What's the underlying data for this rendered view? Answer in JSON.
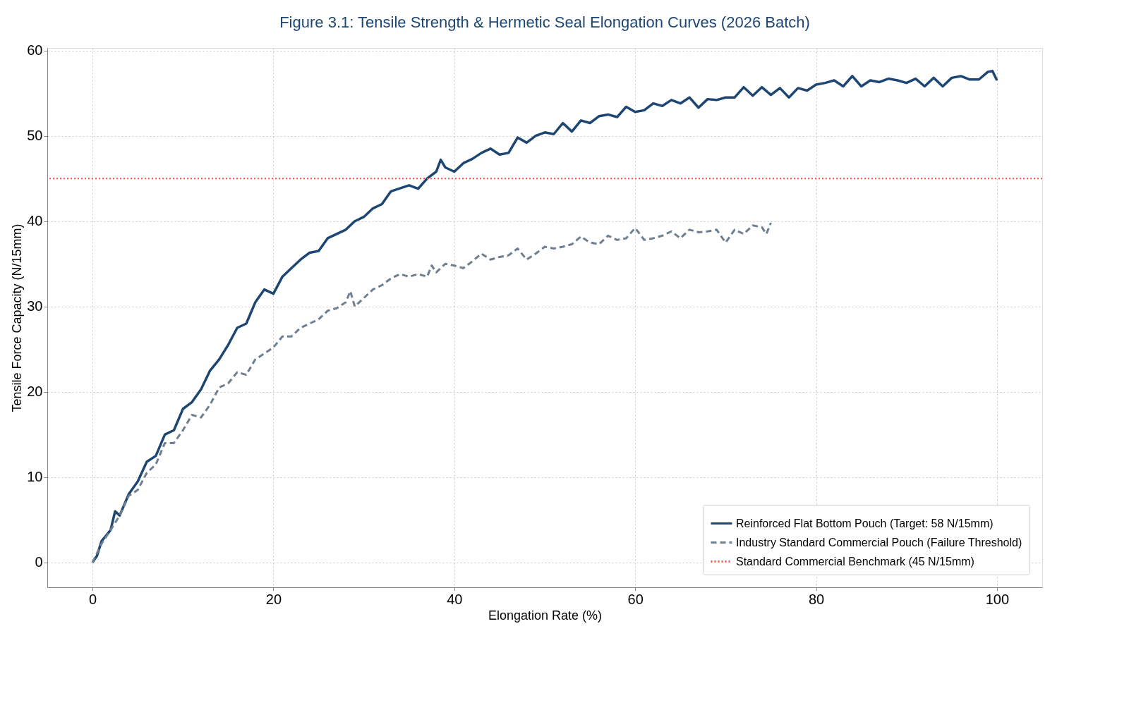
{
  "chart_data": {
    "type": "line",
    "title": "Figure 3.1: Tensile Strength & Hermetic Seal Elongation Curves (2026 Batch)",
    "xlabel": "Elongation Rate (%)",
    "ylabel": "Tensile Force Capacity (N/15mm)",
    "xlim": [
      -5,
      105
    ],
    "ylim": [
      -2.9,
      60.3
    ],
    "xticks": [
      0,
      20,
      40,
      60,
      80,
      100
    ],
    "yticks": [
      0,
      10,
      20,
      30,
      40,
      50,
      60
    ],
    "grid": true,
    "legend": "bottom right",
    "series": [
      {
        "name": "Reinforced Flat Bottom Pouch (Target: 58 N/15mm)",
        "color": "#1d4672",
        "line_style": "solid",
        "x": [
          0,
          0.5,
          1,
          2,
          2.5,
          3,
          4,
          5,
          6,
          7,
          8,
          9,
          10,
          11,
          12,
          13,
          14,
          15,
          16,
          17,
          18,
          19,
          20,
          21,
          22,
          23,
          24,
          25,
          26,
          28,
          29,
          30,
          31,
          32,
          33,
          35,
          36,
          37,
          38,
          38.5,
          39,
          40,
          41,
          42,
          43,
          44,
          45,
          46,
          47,
          48,
          49,
          50,
          51,
          52,
          53,
          54,
          55,
          56,
          57,
          58,
          59,
          60,
          61,
          62,
          63,
          64,
          65,
          66,
          67,
          68,
          69,
          70,
          71,
          72,
          73,
          74,
          75,
          76,
          77,
          78,
          79,
          80,
          81,
          82,
          83,
          84,
          85,
          86,
          87,
          88,
          89,
          90,
          91,
          92,
          93,
          94,
          95,
          96,
          97,
          98,
          99,
          99.5,
          100
        ],
        "values": [
          0,
          0.8,
          2.5,
          3.8,
          6,
          5.5,
          8,
          9.5,
          11.8,
          12.5,
          15,
          15.5,
          18,
          18.8,
          20.3,
          22.5,
          23.8,
          25.5,
          27.5,
          28,
          30.5,
          32,
          31.5,
          33.5,
          34.5,
          35.5,
          36.3,
          36.5,
          38,
          39,
          40,
          40.5,
          41.5,
          42,
          43.5,
          44.2,
          43.8,
          45,
          45.8,
          47.2,
          46.3,
          45.8,
          46.8,
          47.3,
          48,
          48.5,
          47.8,
          48,
          49.8,
          49.2,
          50,
          50.4,
          50.2,
          51.5,
          50.5,
          51.8,
          51.5,
          52.3,
          52.5,
          52.2,
          53.4,
          52.8,
          53,
          53.8,
          53.5,
          54.2,
          53.8,
          54.5,
          53.3,
          54.3,
          54.2,
          54.5,
          54.5,
          55.7,
          54.7,
          55.7,
          54.8,
          55.6,
          54.5,
          55.6,
          55.3,
          56,
          56.2,
          56.5,
          55.8,
          57,
          55.8,
          56.5,
          56.3,
          56.7,
          56.5,
          56.2,
          56.7,
          55.8,
          56.8,
          55.8,
          56.8,
          57,
          56.6,
          56.6,
          57.5,
          57.6,
          56.5
        ]
      },
      {
        "name": "Industry Standard Commercial Pouch (Failure Threshold)",
        "color": "#6e7f91",
        "line_style": "dashed",
        "x": [
          0,
          1,
          2,
          3,
          4,
          5,
          6,
          7,
          8,
          9,
          10,
          11,
          12,
          13,
          14,
          15,
          16,
          17,
          18,
          19,
          20,
          21,
          22,
          23,
          24,
          25,
          26,
          27,
          28,
          28.5,
          29,
          30,
          31,
          32,
          33,
          34,
          35,
          36,
          37,
          37.5,
          38,
          39,
          40,
          41,
          42,
          43,
          44,
          45,
          46,
          47,
          48,
          49,
          50,
          51,
          52,
          53,
          54,
          55,
          56,
          57,
          58,
          59,
          60,
          61,
          62,
          63,
          64,
          65,
          66,
          67,
          68,
          69,
          70,
          71,
          72,
          73,
          74,
          74.5,
          75
        ],
        "values": [
          0,
          2.2,
          3.8,
          5.5,
          7.8,
          8.5,
          10.5,
          11.5,
          14,
          14,
          15.5,
          17.3,
          17,
          18.5,
          20.5,
          21,
          22.3,
          22,
          23.8,
          24.5,
          25.2,
          26.5,
          26.5,
          27.5,
          28,
          28.5,
          29.5,
          29.8,
          30.5,
          31.8,
          30,
          31,
          32,
          32.5,
          33.3,
          33.8,
          33.5,
          33.8,
          33.5,
          34.8,
          34,
          35,
          34.8,
          34.5,
          35.3,
          36.2,
          35.5,
          35.8,
          36,
          36.8,
          35.5,
          36.2,
          37,
          36.8,
          37,
          37.3,
          38.2,
          37.5,
          37.3,
          38.3,
          37.8,
          38,
          39.2,
          37.8,
          38,
          38.3,
          38.8,
          38,
          39,
          38.7,
          38.8,
          39,
          37.5,
          39,
          38.5,
          39.5,
          39.3,
          38.5,
          39.8
        ]
      }
    ],
    "ref_lines": [
      {
        "axis": "y",
        "value": 45,
        "label": "Standard Commercial Benchmark (45 N/15mm)",
        "color": "#ff4d4d",
        "line_style": "dotted"
      }
    ]
  }
}
